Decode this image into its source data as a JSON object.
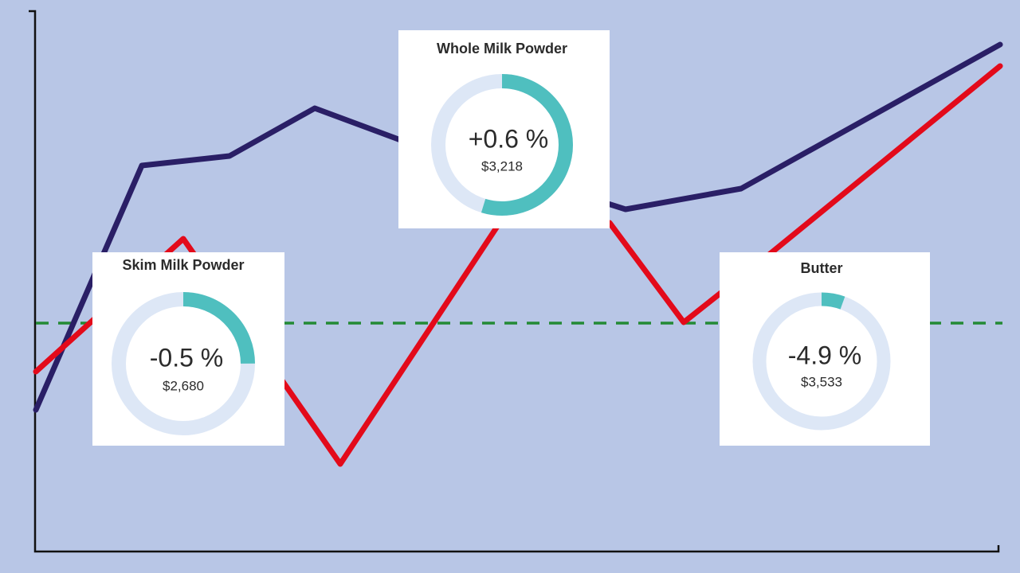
{
  "cards": [
    {
      "title": "Whole Milk Powder",
      "change": "+0.6 %",
      "price": "$3,218"
    },
    {
      "title": "Skim Milk Powder",
      "change": "-0.5 %",
      "price": "$2,680"
    },
    {
      "title": "Butter",
      "change": "-4.9 %",
      "price": "$3,533"
    }
  ]
}
